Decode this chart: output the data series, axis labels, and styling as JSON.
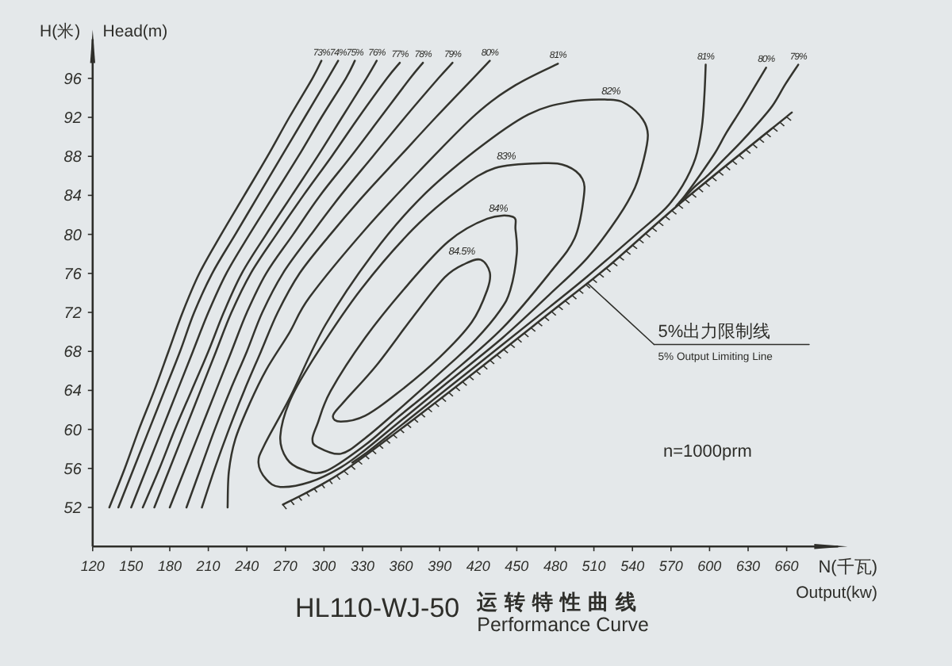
{
  "chart_data": {
    "type": "line",
    "title": "HL110-WJ-50",
    "subtitle": "运转特性曲线\nPerformance Curve",
    "xlabel": "N(千瓦)\nOutput(kw)",
    "ylabel": "H(米) Head(m)",
    "xlim": [
      120,
      700
    ],
    "ylim": [
      48,
      100
    ],
    "xticks": [
      120,
      150,
      180,
      210,
      240,
      270,
      300,
      330,
      360,
      390,
      420,
      450,
      480,
      510,
      540,
      570,
      600,
      630,
      660
    ],
    "yticks": [
      52,
      56,
      60,
      64,
      68,
      72,
      76,
      80,
      84,
      88,
      92,
      96
    ],
    "annotations": [
      {
        "text": "5%出力限制线\n5% Output Limiting Line",
        "x": 505,
        "y": 75
      },
      "n=1000prm",
      "82%",
      "83%",
      "84%",
      "84.5%"
    ],
    "series": [
      {
        "name": "73%",
        "color": "#34342e",
        "x": [
          133,
          145,
          156,
          168,
          179,
          190,
          203,
          220,
          238,
          256,
          273,
          291,
          298
        ],
        "values": [
          52,
          56,
          60,
          64,
          68,
          72,
          76,
          80,
          84,
          88,
          92,
          96,
          97.8
        ]
      },
      {
        "name": "74%",
        "color": "#34342e",
        "x": [
          140,
          152,
          164,
          176,
          188,
          199,
          213,
          231,
          249,
          267,
          285,
          303,
          311
        ],
        "values": [
          52,
          56,
          60,
          64,
          68,
          72,
          76,
          80,
          84,
          88,
          92,
          96,
          97.8
        ]
      },
      {
        "name": "75%",
        "color": "#34342e",
        "x": [
          150,
          162,
          174,
          186,
          198,
          210,
          224,
          242,
          261,
          280,
          298,
          317,
          324
        ],
        "values": [
          52,
          56,
          60,
          64,
          68,
          72,
          76,
          80,
          84,
          88,
          92,
          96,
          97.8
        ]
      },
      {
        "name": "76%",
        "color": "#34342e",
        "x": [
          159,
          172,
          184,
          197,
          210,
          222,
          236,
          255,
          275,
          295,
          314,
          333,
          341
        ],
        "values": [
          52,
          56,
          60,
          64,
          68,
          72,
          76,
          80,
          84,
          88,
          92,
          96,
          97.8
        ]
      },
      {
        "name": "77%",
        "color": "#34342e",
        "x": [
          168,
          180,
          192,
          204,
          216,
          228,
          243,
          263,
          284,
          306,
          327,
          349,
          359
        ],
        "values": [
          52,
          56,
          60,
          64,
          68,
          72,
          76,
          80,
          84,
          88,
          92,
          96,
          97.6
        ]
      },
      {
        "name": "78%",
        "color": "#34342e",
        "x": [
          180,
          192,
          204,
          216,
          228,
          240,
          255,
          276,
          297,
          321,
          344,
          367,
          377
        ],
        "values": [
          52,
          56,
          60,
          64,
          68,
          72,
          76,
          80,
          84,
          88,
          92,
          96,
          97.6
        ]
      },
      {
        "name": "79%",
        "color": "#34342e",
        "x": [
          193,
          204,
          215,
          227,
          240,
          252,
          268,
          290,
          313,
          338,
          363,
          389,
          400
        ],
        "values": [
          52,
          56,
          60,
          64,
          68,
          72,
          76,
          80,
          84,
          88,
          92,
          96,
          97.6
        ]
      },
      {
        "name": "80%",
        "color": "#34342e",
        "x": [
          205,
          215,
          226,
          238,
          251,
          264,
          281,
          305,
          331,
          359,
          387,
          416,
          429
        ],
        "values": [
          52,
          56,
          60,
          64,
          68,
          72,
          76,
          80,
          84,
          88,
          92,
          96,
          97.8
        ]
      },
      {
        "name": "81%",
        "color": "#34342e",
        "x": [
          225,
          226,
          231,
          242,
          255,
          273,
          289,
          332,
          375,
          418,
          449,
          482
        ],
        "values": [
          52,
          55.7,
          59.0,
          62.6,
          66.1,
          69.9,
          73.6,
          80.5,
          86.6,
          92.3,
          95.3,
          97.5
        ]
      },
      {
        "name": "81%",
        "color": "#34342e",
        "x": [
          322,
          332,
          357,
          397,
          439,
          476,
          505,
          542,
          566,
          579,
          589,
          594,
          596,
          597
        ],
        "values": [
          56.6,
          57.5,
          60.1,
          64.3,
          68.7,
          72.6,
          75.7,
          79.9,
          82.7,
          85.0,
          87.8,
          91.0,
          94.3,
          97.4
        ]
      },
      {
        "name": "80%",
        "color": "#34342e",
        "x": [
          644,
          634,
          624,
          613,
          604,
          591,
          581,
          574
        ],
        "values": [
          97.1,
          94.9,
          92.7,
          90.4,
          88.3,
          85.8,
          84.0,
          82.9
        ]
      },
      {
        "name": "79%",
        "color": "#34342e",
        "x": [
          669,
          659,
          649,
          637,
          624,
          612,
          599,
          587,
          576
        ],
        "values": [
          97.4,
          95.4,
          93.2,
          91.3,
          89.4,
          87.8,
          86.1,
          84.7,
          83.1
        ]
      },
      {
        "color": "#34342e",
        "x": [
          268,
          315,
          398,
          480,
          521,
          579,
          664
        ],
        "values": [
          52.3,
          55.7,
          63.9,
          72.4,
          76.7,
          83.4,
          92.5
        ]
      }
    ]
  }
}
